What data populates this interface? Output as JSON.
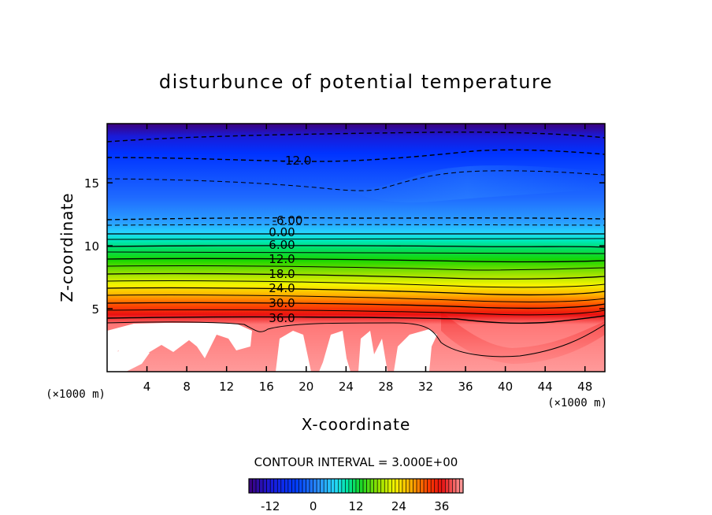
{
  "chart_data": {
    "type": "contour",
    "title": "disturbunce of potential temperature",
    "xlabel": "X-coordinate",
    "ylabel": "Z-coordinate",
    "x_unit": "(×1000 m)",
    "y_unit": "(×1000 m)",
    "xlim": [
      0,
      50
    ],
    "ylim": [
      0,
      19.7
    ],
    "x_ticks": [
      4,
      8,
      12,
      16,
      20,
      24,
      28,
      32,
      36,
      40,
      44,
      48
    ],
    "y_ticks": [
      5,
      10,
      15
    ],
    "contour_interval_text": "CONTOUR INTERVAL = 3.000E+00",
    "contour_labels": [
      {
        "text": "-12.0",
        "x": 19,
        "z": 16.8
      },
      {
        "text": "-6.00",
        "x": 18,
        "z": 12.2
      },
      {
        "text": "0.00",
        "x": 17.5,
        "z": 11.2
      },
      {
        "text": "6.00",
        "x": 17.5,
        "z": 10.2
      },
      {
        "text": "12.0",
        "x": 17.5,
        "z": 9.0
      },
      {
        "text": "18.0",
        "x": 17.5,
        "z": 7.8
      },
      {
        "text": "24.0",
        "x": 17.5,
        "z": 6.6
      },
      {
        "text": "30.0",
        "x": 17.5,
        "z": 5.4
      },
      {
        "text": "36.0",
        "x": 17.5,
        "z": 4.2
      }
    ],
    "colorbar": {
      "min": -18,
      "max": 42,
      "ticks": [
        -12,
        0,
        12,
        24,
        36
      ],
      "tick_labels": [
        "-12",
        "0",
        "12",
        "24",
        "36"
      ]
    }
  }
}
